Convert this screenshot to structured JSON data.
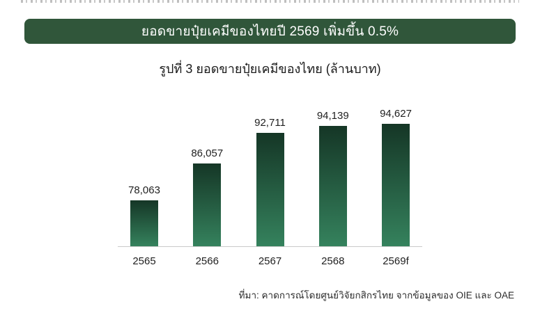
{
  "page": {
    "banner_title": "ยอดขายปุ๋ยเคมีของไทยปี 2569 เพิ่มขึ้น 0.5%",
    "subtitle": "รูปที่ 3 ยอดขายปุ๋ยเคมีของไทย (ล้านบาท)",
    "source": "ที่มา: คาดการณ์โดยศูนย์วิจัยกสิกรไทย จากข้อมูลของ OIE และ OAE"
  },
  "colors": {
    "banner_bg": "#30563a",
    "bar_gradient_top": "#153626",
    "bar_gradient_bottom": "#35825d",
    "axis": "#c9c9c9"
  },
  "chart_data": {
    "type": "bar",
    "title": "รูปที่ 3 ยอดขายปุ๋ยเคมีของไทย (ล้านบาท)",
    "banner": "ยอดขายปุ๋ยเคมีของไทยปี 2569 เพิ่มขึ้น 0.5%",
    "categories": [
      "2565",
      "2566",
      "2567",
      "2568",
      "2569f"
    ],
    "values": [
      78063,
      86057,
      92711,
      94139,
      94627
    ],
    "value_labels": [
      "78,063",
      "86,057",
      "92,711",
      "94,139",
      "94,627"
    ],
    "xlabel": "",
    "ylabel": "ล้านบาท",
    "ylim": [
      68000,
      96000
    ],
    "grid": false,
    "legend": false,
    "source": "ที่มา: คาดการณ์โดยศูนย์วิจัยกสิกรไทย จากข้อมูลของ OIE และ OAE"
  }
}
